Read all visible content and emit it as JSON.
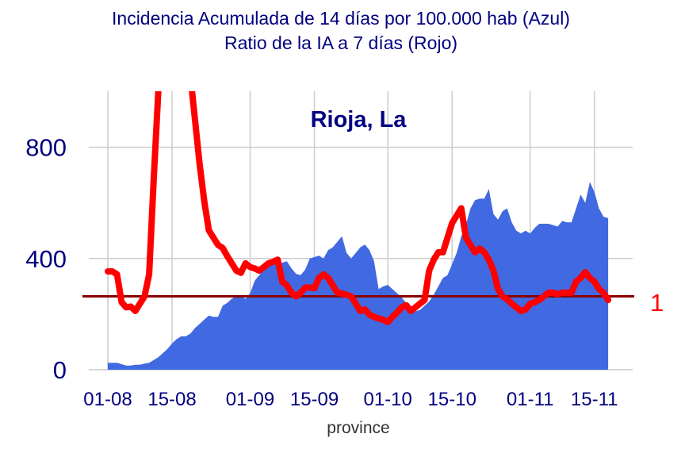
{
  "chart_data": {
    "type": "area",
    "title_line1": "Incidencia Acumulada de 14 días por 100.000 hab (Azul)",
    "title_line2": "Ratio de la IA a 7 días (Rojo)",
    "panel_label": "Rioja, La",
    "xlabel": "province",
    "ylabel": "",
    "ylim": [
      0,
      1000
    ],
    "y_ticks": [
      0,
      400,
      800
    ],
    "y_tick_labels": [
      "0",
      "400",
      "800"
    ],
    "x_ticks": [
      "01-08",
      "15-08",
      "01-09",
      "15-09",
      "01-10",
      "15-10",
      "01-11",
      "15-11"
    ],
    "x_start": "2020-08-01",
    "reference_line": {
      "value": 1,
      "label": "1"
    },
    "grid": true,
    "colors": {
      "incidence_fill": "#4169E1",
      "ratio_line": "#FF0000",
      "reference_line": "#8B0000",
      "title_text": "#000080",
      "grid": "#CCCCCC"
    },
    "series": [
      {
        "name": "Incidencia Acumulada de 14 días por 100.000 hab",
        "type": "area",
        "values": [
          25,
          25,
          25,
          20,
          15,
          15,
          18,
          18,
          22,
          25,
          35,
          45,
          60,
          75,
          95,
          110,
          120,
          120,
          130,
          150,
          165,
          180,
          195,
          190,
          190,
          230,
          240,
          255,
          265,
          265,
          255,
          275,
          320,
          340,
          360,
          370,
          380,
          380,
          385,
          390,
          365,
          345,
          340,
          360,
          400,
          405,
          410,
          400,
          430,
          440,
          460,
          480,
          420,
          400,
          420,
          440,
          450,
          430,
          390,
          290,
          300,
          305,
          290,
          275,
          260,
          240,
          225,
          210,
          215,
          230,
          245,
          270,
          300,
          330,
          340,
          380,
          420,
          480,
          520,
          580,
          610,
          615,
          615,
          650,
          560,
          540,
          570,
          580,
          530,
          500,
          490,
          500,
          490,
          510,
          525,
          525,
          525,
          520,
          515,
          535,
          530,
          530,
          580,
          630,
          600,
          675,
          640,
          580,
          550,
          545
        ],
        "scale": "absolute"
      },
      {
        "name": "Ratio de la IA a 7 días",
        "type": "line",
        "values": [
          1.34,
          1.34,
          1.3,
          0.92,
          0.85,
          0.86,
          0.8,
          0.9,
          1.0,
          1.3,
          2.6,
          3.8,
          4.3,
          6.5,
          6.5,
          6.5,
          5.4,
          4.5,
          4.0,
          3.4,
          2.8,
          2.3,
          1.9,
          1.8,
          1.7,
          1.66,
          1.55,
          1.45,
          1.35,
          1.32,
          1.45,
          1.4,
          1.38,
          1.35,
          1.4,
          1.45,
          1.47,
          1.5,
          1.2,
          1.15,
          1.05,
          1.0,
          1.05,
          1.12,
          1.12,
          1.11,
          1.25,
          1.3,
          1.25,
          1.15,
          1.05,
          1.04,
          1.02,
          1.0,
          0.9,
          0.8,
          0.82,
          0.75,
          0.72,
          0.7,
          0.68,
          0.65,
          0.72,
          0.78,
          0.85,
          0.88,
          0.8,
          0.85,
          0.9,
          0.95,
          1.35,
          1.5,
          1.6,
          1.6,
          1.8,
          2.0,
          2.1,
          2.2,
          1.8,
          1.7,
          1.6,
          1.65,
          1.6,
          1.5,
          1.35,
          1.1,
          1.0,
          0.96,
          0.9,
          0.85,
          0.8,
          0.82,
          0.9,
          0.92,
          0.95,
          1.0,
          1.05,
          1.05,
          1.03,
          1.05,
          1.05,
          1.05,
          1.2,
          1.25,
          1.33,
          1.25,
          1.2,
          1.1,
          1.05,
          0.95
        ],
        "scale": "ratio"
      }
    ]
  }
}
